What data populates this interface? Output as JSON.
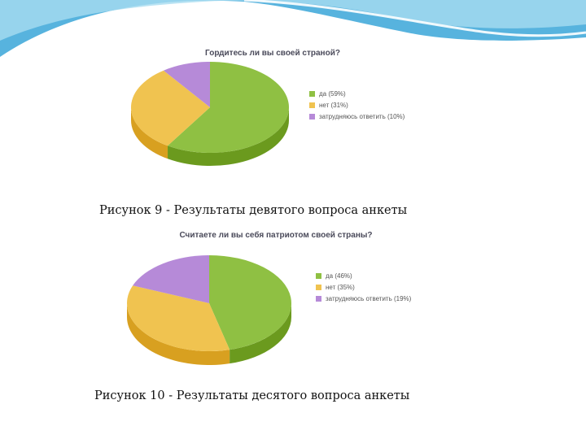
{
  "colors": {
    "green": "#8fc043",
    "green_dark": "#6b9a1e",
    "orange": "#f0c350",
    "orange_dark": "#d8a020",
    "purple": "#b68ad8",
    "purple_dark": "#8f5fb8",
    "header_blue": "#3aa6d8",
    "header_light": "#a8dcf0"
  },
  "chart_data": [
    {
      "type": "pie",
      "title": "Гордитесь ли вы своей страной?",
      "labels": [
        "да (59%)",
        "нет (31%)",
        "затрудняюсь ответить (10%)"
      ],
      "values": [
        59,
        31,
        10
      ],
      "legend_position": "right"
    },
    {
      "type": "pie",
      "title": "Считаете ли вы себя патриотом своей страны?",
      "labels": [
        "да (46%)",
        "нет (35%)",
        "затрудняюсь ответить (19%)"
      ],
      "values": [
        46,
        35,
        19
      ],
      "legend_position": "right"
    }
  ],
  "captions": {
    "figure9": "Рисунок 9 - Результаты девятого вопроса анкеты",
    "figure10": "Рисунок 10 - Результаты десятого вопроса анкеты"
  }
}
